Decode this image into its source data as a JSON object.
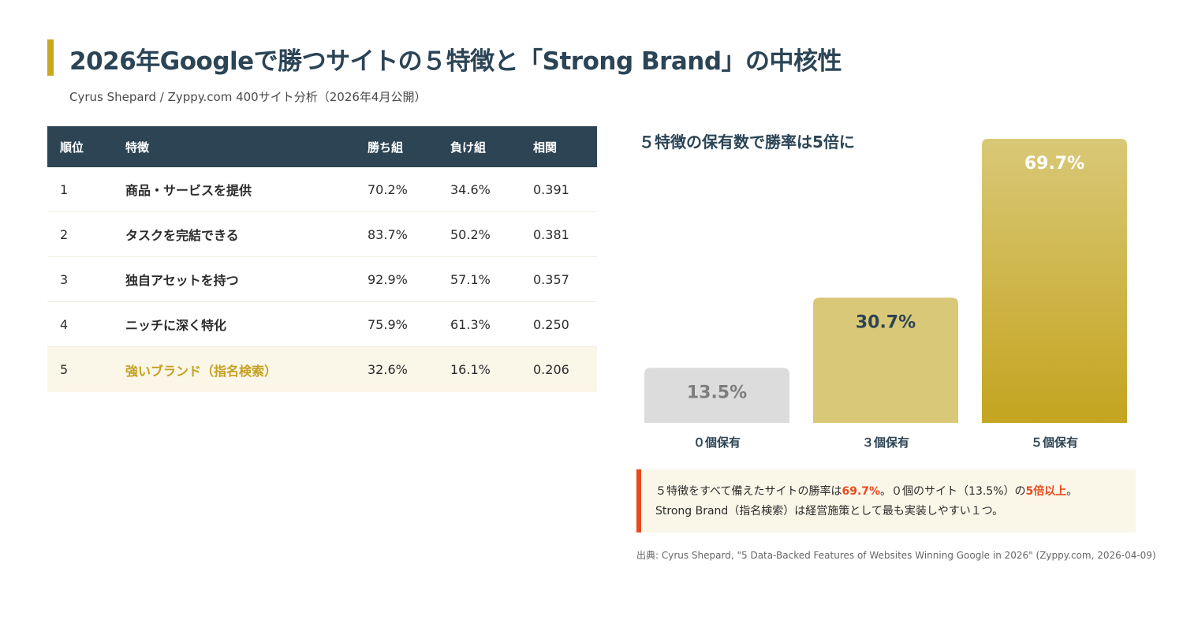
{
  "header": {
    "title": "2026年Googleで勝つサイトの５特徴と「Strong Brand」の中核性",
    "subtitle": "Cyrus Shepard / Zyppy.com 400サイト分析（2026年4月公開）"
  },
  "table": {
    "columns": [
      "順位",
      "特徴",
      "勝ち組",
      "負け組",
      "相関"
    ],
    "rows": [
      {
        "rank": "1",
        "feature": "商品・サービスを提供",
        "win": "70.2%",
        "lose": "34.6%",
        "corr": "0.391"
      },
      {
        "rank": "2",
        "feature": "タスクを完結できる",
        "win": "83.7%",
        "lose": "50.2%",
        "corr": "0.381"
      },
      {
        "rank": "3",
        "feature": "独自アセットを持つ",
        "win": "92.9%",
        "lose": "57.1%",
        "corr": "0.357"
      },
      {
        "rank": "4",
        "feature": "ニッチに深く特化",
        "win": "75.9%",
        "lose": "61.3%",
        "corr": "0.250"
      },
      {
        "rank": "5",
        "feature": "強いブランド（指名検索）",
        "win": "32.6%",
        "lose": "16.1%",
        "corr": "0.206"
      }
    ]
  },
  "chart_data": {
    "type": "bar",
    "title": "５特徴の保有数で勝率は5倍に",
    "categories": [
      "０個保有",
      "３個保有",
      "５個保有"
    ],
    "values": [
      13.5,
      30.7,
      69.7
    ],
    "value_labels": [
      "13.5%",
      "30.7%",
      "69.7%"
    ],
    "ylim": [
      0,
      69.7
    ],
    "grid": false,
    "colors": {
      "bar0": "#dcdcdc",
      "bar1": "#d9c877",
      "bar2_top": "#d9c877",
      "bar2_bottom": "#c4a41f",
      "label0": "#7d7d7d",
      "label1": "#2d4454",
      "label2": "#ffffff"
    }
  },
  "note": {
    "line1_pre": "５特徴をすべて備えたサイトの勝率は",
    "line1_em1": "69.7%",
    "line1_mid": "。０個のサイト（13.5%）の",
    "line1_em2": "5倍以上",
    "line1_post": "。",
    "line2": "Strong Brand（指名検索）は経営施策として最も実装しやすい１つ。"
  },
  "source": "出典: Cyrus Shepard, \"5 Data-Backed Features of Websites Winning Google in 2026\" (Zyppy.com, 2026-04-09)"
}
